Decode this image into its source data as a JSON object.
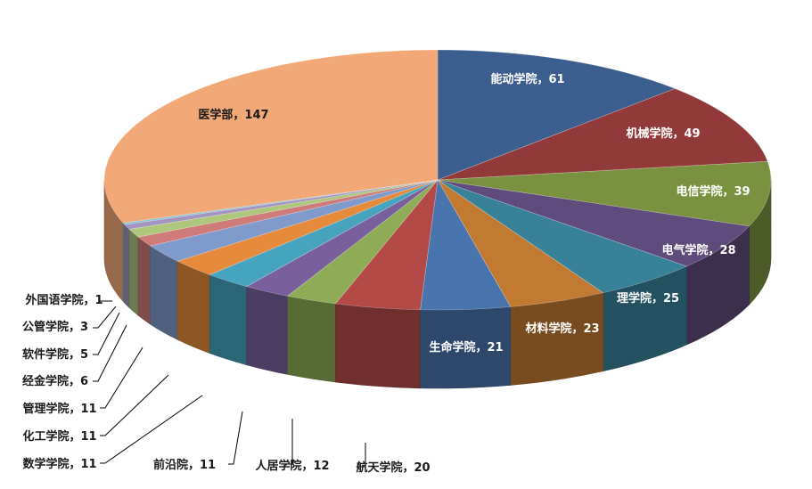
{
  "chart_data": {
    "type": "pie",
    "title": "",
    "variant": "3d-exploded-none",
    "start_angle": "12 o'clock, clockwise",
    "legend": "none",
    "slices": [
      {
        "label": "能动学院",
        "value": 61,
        "color": "#3b5e8f",
        "text": "能动学院，61"
      },
      {
        "label": "机械学院",
        "value": 49,
        "color": "#923a3a",
        "text": "机械学院，49"
      },
      {
        "label": "电信学院",
        "value": 39,
        "color": "#7a9240",
        "text": "电信学院，39"
      },
      {
        "label": "电气学院",
        "value": 28,
        "color": "#604b7d",
        "text": "电气学院，28"
      },
      {
        "label": "理学院",
        "value": 25,
        "color": "#388299",
        "text": "理学院，25"
      },
      {
        "label": "材料学院",
        "value": 23,
        "color": "#c27a32",
        "text": "材料学院，23"
      },
      {
        "label": "生命学院",
        "value": 21,
        "color": "#4a74ae",
        "text": "生命学院，21"
      },
      {
        "label": "航天学院",
        "value": 20,
        "color": "#b44a48",
        "text": "航天学院，20"
      },
      {
        "label": "人居学院",
        "value": 12,
        "color": "#8dac55",
        "text": "人居学院，12"
      },
      {
        "label": "前沿院",
        "value": 11,
        "color": "#79609c",
        "text": "前沿院，11"
      },
      {
        "label": "数学学院",
        "value": 11,
        "color": "#46a4bf",
        "text": "数学学院，11"
      },
      {
        "label": "化工学院",
        "value": 11,
        "color": "#e68a3c",
        "text": "化工学院，11"
      },
      {
        "label": "管理学院",
        "value": 11,
        "color": "#7f9acb",
        "text": "管理学院，11"
      },
      {
        "label": "经金学院",
        "value": 6,
        "color": "#cf7b79",
        "text": "经金学院，6"
      },
      {
        "label": "软件学院",
        "value": 5,
        "color": "#aec77d",
        "text": "软件学院，5"
      },
      {
        "label": "公管学院",
        "value": 3,
        "color": "#a694c0",
        "text": "公管学院，3"
      },
      {
        "label": "外国语学院",
        "value": 1,
        "color": "#7fc3d6",
        "text": "外国语学院，1"
      },
      {
        "label": "医学部",
        "value": 147,
        "color": "#f3a878",
        "text": "医学部，147"
      }
    ]
  }
}
